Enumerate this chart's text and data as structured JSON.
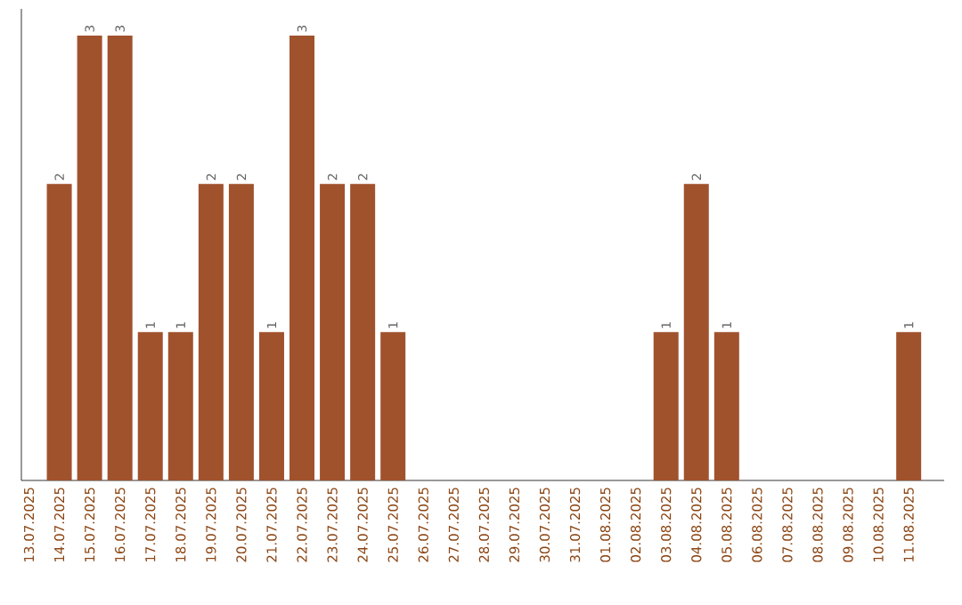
{
  "chart_data": {
    "type": "bar",
    "categories": [
      "13.07.2025",
      "14.07.2025",
      "15.07.2025",
      "16.07.2025",
      "17.07.2025",
      "18.07.2025",
      "19.07.2025",
      "20.07.2025",
      "21.07.2025",
      "22.07.2025",
      "23.07.2025",
      "24.07.2025",
      "25.07.2025",
      "26.07.2025",
      "27.07.2025",
      "28.07.2025",
      "29.07.2025",
      "30.07.2025",
      "31.07.2025",
      "01.08.2025",
      "02.08.2025",
      "03.08.2025",
      "04.08.2025",
      "05.08.2025",
      "06.08.2025",
      "07.08.2025",
      "08.08.2025",
      "09.08.2025",
      "10.08.2025",
      "11.08.2025"
    ],
    "values": [
      0,
      2,
      3,
      3,
      1,
      1,
      2,
      2,
      1,
      3,
      2,
      2,
      1,
      0,
      0,
      0,
      0,
      0,
      0,
      0,
      0,
      1,
      2,
      1,
      0,
      0,
      0,
      0,
      0,
      1
    ],
    "value_labels": [
      null,
      "2",
      "3",
      "3",
      "1",
      "1",
      "2",
      "2",
      "1",
      "3",
      "2",
      "2",
      "1",
      null,
      null,
      null,
      null,
      null,
      null,
      null,
      null,
      "1",
      "2",
      "1",
      null,
      null,
      null,
      null,
      null,
      "1"
    ],
    "color": "#a0522d",
    "grid": false,
    "tick_labels": "x"
  }
}
